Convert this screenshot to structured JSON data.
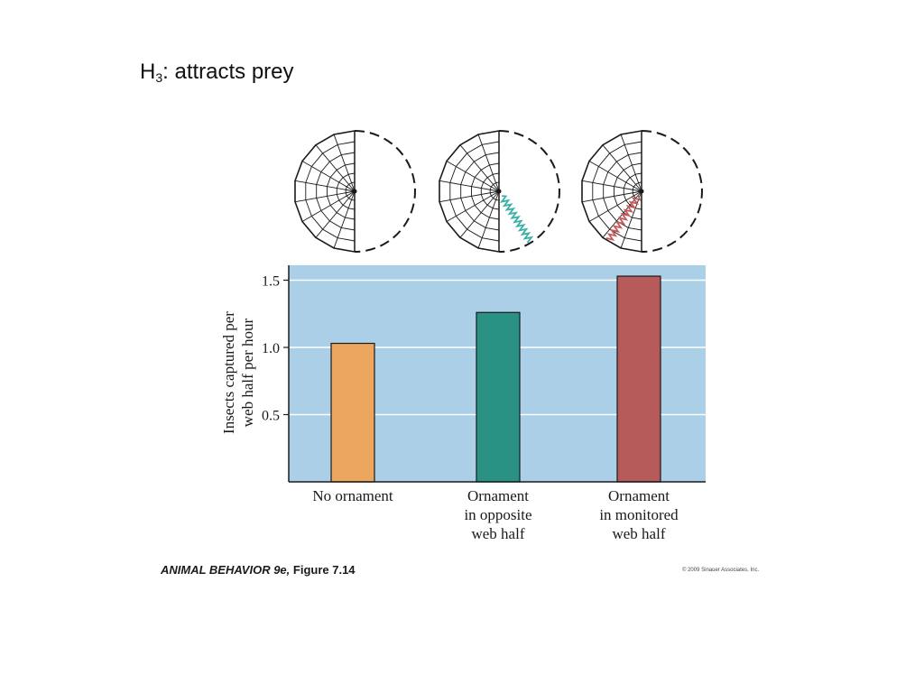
{
  "slide": {
    "title_main": "H",
    "title_sub": "3",
    "title_rest": ": attracts prey"
  },
  "caption": {
    "book": "ANIMAL BEHAVIOR 9e,",
    "figure": "Figure 7.14",
    "copyright": "© 2009 Sinauer Associates, Inc."
  },
  "chart_data": {
    "type": "bar",
    "categories": [
      [
        "No ornament"
      ],
      [
        "Ornament",
        "in opposite",
        "web half"
      ],
      [
        "Ornament",
        "in monitored",
        "web half"
      ]
    ],
    "values": [
      1.03,
      1.26,
      1.53
    ],
    "bar_colors": [
      "#eca65e",
      "#2a9284",
      "#b65a5a"
    ],
    "ornament_colors": [
      null,
      "#3ab0a6",
      "#c45c5c"
    ],
    "ornament_side": [
      "none",
      "opposite",
      "monitored"
    ],
    "ylabel": [
      "Insects captured per",
      "web half per hour"
    ],
    "yticks": [
      0.5,
      1.0,
      1.5
    ],
    "ytick_labels": [
      "0.5",
      "1.0",
      "1.5"
    ],
    "ylim": [
      0,
      1.6
    ],
    "background_color": "#aacfe7",
    "grid": true
  }
}
